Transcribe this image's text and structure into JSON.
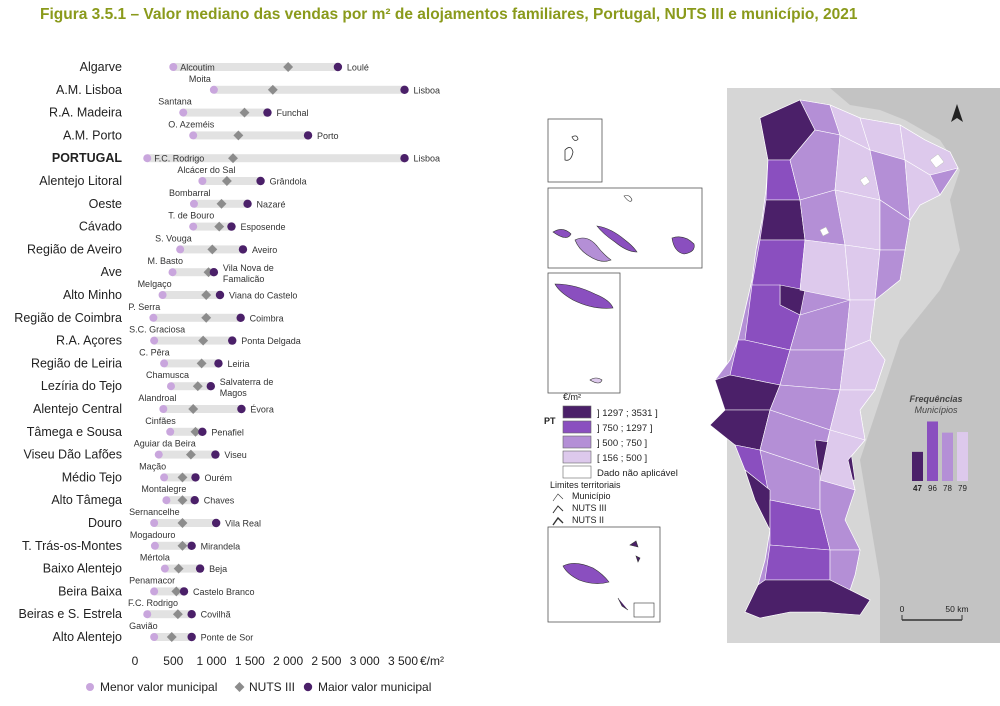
{
  "title": "Figura 3.5.1 – Valor mediano das vendas por m² de alojamentos familiares, Portugal, NUTS III e município, 2021",
  "chart_data": {
    "type": "dot-range",
    "unit": "€/m²",
    "xlim": [
      0,
      3700
    ],
    "xticks": [
      0,
      500,
      1000,
      1500,
      2000,
      2500,
      3000,
      3500
    ],
    "xtick_labels": [
      "0",
      "500",
      "1 000",
      "1 500",
      "2 000",
      "2 500",
      "3 000",
      "3 500"
    ],
    "legend": {
      "min": "Menor valor municipal",
      "nuts": "NUTS III",
      "max": "Maior valor municipal"
    },
    "colors": {
      "bar": "#e2e2e2",
      "min": "#c9a6dd",
      "nuts": "#8c8c8c",
      "max": "#4b2069"
    },
    "rows": [
      {
        "region": "Algarve",
        "min": 500,
        "nuts": 2000,
        "max": 2650,
        "min_label": "Alcoutim",
        "max_label": "Loulé",
        "bold": false
      },
      {
        "region": "A.M. Lisboa",
        "min": 1030,
        "nuts": 1800,
        "max": 3520,
        "min_label": "Moita",
        "max_label": "Lisboa",
        "bold": false
      },
      {
        "region": "R.A. Madeira",
        "min": 630,
        "nuts": 1430,
        "max": 1730,
        "min_label": "Santana",
        "max_label": "Funchal",
        "bold": false
      },
      {
        "region": "A.M. Porto",
        "min": 760,
        "nuts": 1350,
        "max": 2260,
        "min_label": "O. Azeméis",
        "max_label": "Porto",
        "bold": false
      },
      {
        "region": "PORTUGAL",
        "min": 160,
        "nuts": 1280,
        "max": 3520,
        "min_label": "F.C. Rodrigo",
        "max_label": "Lisboa",
        "bold": true
      },
      {
        "region": "Alentejo Litoral",
        "min": 880,
        "nuts": 1200,
        "max": 1640,
        "min_label": "Alcácer do Sal",
        "max_label": "Grândola",
        "bold": false
      },
      {
        "region": "Oeste",
        "min": 770,
        "nuts": 1130,
        "max": 1470,
        "min_label": "Bombarral",
        "max_label": "Nazaré",
        "bold": false
      },
      {
        "region": "Cávado",
        "min": 760,
        "nuts": 1100,
        "max": 1260,
        "min_label": "T. de Bouro",
        "max_label": "Esposende",
        "bold": false
      },
      {
        "region": "Região de Aveiro",
        "min": 590,
        "nuts": 1010,
        "max": 1410,
        "min_label": "S. Vouga",
        "max_label": "Aveiro",
        "bold": false
      },
      {
        "region": "Ave",
        "min": 490,
        "nuts": 960,
        "max": 1030,
        "min_label": "M. Basto",
        "max_label": "Vila Nova de Famalicão",
        "bold": false
      },
      {
        "region": "Alto Minho",
        "min": 360,
        "nuts": 930,
        "max": 1110,
        "min_label": "Melgaço",
        "max_label": "Viana do Castelo",
        "bold": false
      },
      {
        "region": "Região de Coimbra",
        "min": 240,
        "nuts": 930,
        "max": 1380,
        "min_label": "P. Serra",
        "max_label": "Coimbra",
        "bold": false
      },
      {
        "region": "R.A. Açores",
        "min": 250,
        "nuts": 890,
        "max": 1270,
        "min_label": "S.C. Graciosa",
        "max_label": "Ponta Delgada",
        "bold": false
      },
      {
        "region": "Região de Leiria",
        "min": 380,
        "nuts": 870,
        "max": 1090,
        "min_label": "C. Pêra",
        "max_label": "Leiria",
        "bold": false
      },
      {
        "region": "Lezíria do Tejo",
        "min": 470,
        "nuts": 820,
        "max": 990,
        "min_label": "Chamusca",
        "max_label": "Salvaterra de Magos",
        "bold": false
      },
      {
        "region": "Alentejo Central",
        "min": 370,
        "nuts": 760,
        "max": 1390,
        "min_label": "Alandroal",
        "max_label": "Évora",
        "bold": false
      },
      {
        "region": "Tâmega e Sousa",
        "min": 460,
        "nuts": 790,
        "max": 880,
        "min_label": "Cinfães",
        "max_label": "Penafiel",
        "bold": false
      },
      {
        "region": "Viseu Dão Lafões",
        "min": 310,
        "nuts": 730,
        "max": 1050,
        "min_label": "Aguiar da Beira",
        "max_label": "Viseu",
        "bold": false
      },
      {
        "region": "Médio Tejo",
        "min": 380,
        "nuts": 620,
        "max": 790,
        "min_label": "Mação",
        "max_label": "Ourém",
        "bold": false
      },
      {
        "region": "Alto Tâmega",
        "min": 410,
        "nuts": 620,
        "max": 780,
        "min_label": "Montalegre",
        "max_label": "Chaves",
        "bold": false
      },
      {
        "region": "Douro",
        "min": 250,
        "nuts": 620,
        "max": 1060,
        "min_label": "Sernancelhe",
        "max_label": "Vila Real",
        "bold": false
      },
      {
        "region": "T. Trás-os-Montes",
        "min": 260,
        "nuts": 620,
        "max": 740,
        "min_label": "Mogadouro",
        "max_label": "Mirandela",
        "bold": false
      },
      {
        "region": "Baixo Alentejo",
        "min": 390,
        "nuts": 570,
        "max": 850,
        "min_label": "Mértola",
        "max_label": "Beja",
        "bold": false
      },
      {
        "region": "Beira Baixa",
        "min": 250,
        "nuts": 540,
        "max": 640,
        "min_label": "Penamacor",
        "max_label": "Castelo Branco",
        "bold": false
      },
      {
        "region": "Beiras e S. Estrela",
        "min": 160,
        "nuts": 560,
        "max": 740,
        "min_label": "F.C. Rodrigo",
        "max_label": "Covilhã",
        "bold": false
      },
      {
        "region": "Alto Alentejo",
        "min": 250,
        "nuts": 480,
        "max": 740,
        "min_label": "Gavião",
        "max_label": "Ponte de Sor",
        "bold": false
      }
    ]
  },
  "map": {
    "legend_unit": "€/m²",
    "pt_label": "PT",
    "classes": [
      {
        "label": "] 1297 ; 3531 ]",
        "color": "#4b2069"
      },
      {
        "label": "] 750 ; 1297 ]",
        "color": "#8a4fbf"
      },
      {
        "label": "] 500 ; 750 ]",
        "color": "#b48fd6"
      },
      {
        "label": "[ 156 ; 500 ]",
        "color": "#ddc9ec"
      },
      {
        "label": "Dado não aplicável",
        "color": "#ffffff"
      }
    ],
    "limits_title": "Limites territoriais",
    "limits": [
      "Município",
      "NUTS III",
      "NUTS II"
    ],
    "freq_title": "Frequências",
    "freq_subtitle": "Municípios",
    "freq": [
      47,
      96,
      78,
      79
    ],
    "scale": [
      "0",
      "50 km"
    ],
    "colors": {
      "sea": "#d3d3d3",
      "land_outside": "#c9c9c9"
    }
  }
}
